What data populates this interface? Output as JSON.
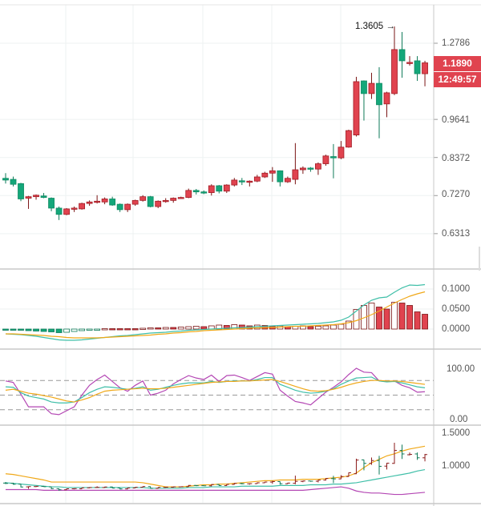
{
  "chart_data": {
    "type": "candlestick",
    "price_pane": {
      "scale": "log",
      "y_ticks": [
        "1.2786",
        "0.9641",
        "0.8372",
        "0.7270",
        "0.6313"
      ],
      "last_price_label": "1.1890",
      "countdown_label": "12:49:57",
      "high_annotation": "1.3605",
      "colors": {
        "rising": "#e0434f",
        "falling": "#14a77a"
      },
      "candles_ohlc": [
        [
          0.775,
          0.79,
          0.76,
          0.77
        ],
        [
          0.772,
          0.78,
          0.752,
          0.758
        ],
        [
          0.76,
          0.762,
          0.712,
          0.718
        ],
        [
          0.72,
          0.726,
          0.692,
          0.724
        ],
        [
          0.724,
          0.73,
          0.716,
          0.728
        ],
        [
          0.726,
          0.734,
          0.72,
          0.722
        ],
        [
          0.72,
          0.722,
          0.686,
          0.694
        ],
        [
          0.694,
          0.698,
          0.664,
          0.678
        ],
        [
          0.678,
          0.694,
          0.676,
          0.692
        ],
        [
          0.692,
          0.698,
          0.684,
          0.694
        ],
        [
          0.692,
          0.708,
          0.69,
          0.706
        ],
        [
          0.706,
          0.714,
          0.7,
          0.71
        ],
        [
          0.711,
          0.728,
          0.706,
          0.712
        ],
        [
          0.71,
          0.722,
          0.704,
          0.718
        ],
        [
          0.718,
          0.724,
          0.7,
          0.702
        ],
        [
          0.704,
          0.706,
          0.684,
          0.69
        ],
        [
          0.69,
          0.706,
          0.684,
          0.704
        ],
        [
          0.704,
          0.716,
          0.7,
          0.714
        ],
        [
          0.714,
          0.728,
          0.711,
          0.724
        ],
        [
          0.724,
          0.726,
          0.696,
          0.698
        ],
        [
          0.698,
          0.714,
          0.694,
          0.712
        ],
        [
          0.712,
          0.72,
          0.708,
          0.714
        ],
        [
          0.714,
          0.722,
          0.708,
          0.72
        ],
        [
          0.72,
          0.724,
          0.718,
          0.722
        ],
        [
          0.722,
          0.746,
          0.72,
          0.741
        ],
        [
          0.741,
          0.745,
          0.73,
          0.737
        ],
        [
          0.737,
          0.741,
          0.731,
          0.735
        ],
        [
          0.735,
          0.758,
          0.727,
          0.754
        ],
        [
          0.754,
          0.756,
          0.733,
          0.739
        ],
        [
          0.739,
          0.758,
          0.734,
          0.756
        ],
        [
          0.756,
          0.776,
          0.752,
          0.77
        ],
        [
          0.768,
          0.776,
          0.756,
          0.766
        ],
        [
          0.765,
          0.769,
          0.752,
          0.767
        ],
        [
          0.767,
          0.785,
          0.764,
          0.779
        ],
        [
          0.779,
          0.794,
          0.776,
          0.79
        ],
        [
          0.79,
          0.808,
          0.765,
          0.797
        ],
        [
          0.797,
          0.798,
          0.752,
          0.765
        ],
        [
          0.765,
          0.78,
          0.762,
          0.775
        ],
        [
          0.772,
          0.883,
          0.758,
          0.8
        ],
        [
          0.8,
          0.81,
          0.788,
          0.805
        ],
        [
          0.805,
          0.808,
          0.794,
          0.802
        ],
        [
          0.802,
          0.822,
          0.785,
          0.818
        ],
        [
          0.818,
          0.846,
          0.812,
          0.842
        ],
        [
          0.84,
          0.88,
          0.775,
          0.836
        ],
        [
          0.836,
          0.89,
          0.832,
          0.87
        ],
        [
          0.87,
          0.928,
          0.868,
          0.925
        ],
        [
          0.91,
          1.129,
          0.905,
          1.109
        ],
        [
          1.112,
          1.114,
          0.96,
          1.061
        ],
        [
          1.061,
          1.146,
          1.04,
          1.102
        ],
        [
          1.102,
          1.17,
          0.899,
          1.018
        ],
        [
          1.021,
          1.068,
          0.972,
          1.064
        ],
        [
          1.061,
          1.3605,
          1.055,
          1.249
        ],
        [
          1.249,
          1.333,
          1.125,
          1.198
        ],
        [
          1.186,
          1.219,
          1.177,
          1.191
        ],
        [
          1.198,
          1.219,
          1.112,
          1.142
        ],
        [
          1.142,
          1.198,
          1.09,
          1.189
        ]
      ]
    },
    "macd_pane": {
      "y_ticks": [
        "0.1000",
        "0.0500",
        "0.0000"
      ],
      "ylim": [
        -0.03,
        0.12
      ],
      "colors": {
        "dif": "#3fbfa8",
        "dea": "#f0a818",
        "hist_pos": "#e0434f",
        "hist_neg": "#14a77a"
      },
      "dif": [
        -0.012,
        -0.013,
        -0.014,
        -0.016,
        -0.018,
        -0.021,
        -0.024,
        -0.027,
        -0.028,
        -0.028,
        -0.027,
        -0.025,
        -0.023,
        -0.021,
        -0.019,
        -0.017,
        -0.016,
        -0.014,
        -0.012,
        -0.01,
        -0.009,
        -0.008,
        -0.006,
        -0.005,
        -0.003,
        -0.002,
        -0.001,
        0.0,
        0.001,
        0.002,
        0.003,
        0.004,
        0.005,
        0.006,
        0.007,
        0.008,
        0.009,
        0.01,
        0.011,
        0.012,
        0.013,
        0.014,
        0.016,
        0.018,
        0.022,
        0.03,
        0.045,
        0.06,
        0.072,
        0.078,
        0.08,
        0.092,
        0.103,
        0.11,
        0.109,
        0.111
      ],
      "dea": [
        -0.012,
        -0.012,
        -0.013,
        -0.014,
        -0.015,
        -0.016,
        -0.018,
        -0.019,
        -0.021,
        -0.022,
        -0.022,
        -0.022,
        -0.022,
        -0.021,
        -0.02,
        -0.019,
        -0.018,
        -0.017,
        -0.016,
        -0.015,
        -0.013,
        -0.012,
        -0.01,
        -0.009,
        -0.007,
        -0.006,
        -0.004,
        -0.003,
        -0.002,
        -0.001,
        0.0,
        0.001,
        0.002,
        0.003,
        0.003,
        0.004,
        0.005,
        0.006,
        0.007,
        0.007,
        0.008,
        0.009,
        0.01,
        0.011,
        0.013,
        0.016,
        0.021,
        0.028,
        0.036,
        0.045,
        0.055,
        0.065,
        0.074,
        0.082,
        0.088,
        0.093
      ],
      "histogram": [
        -0.001,
        -0.002,
        -0.003,
        -0.004,
        -0.005,
        -0.006,
        -0.007,
        -0.009,
        -0.008,
        -0.006,
        -0.004,
        -0.003,
        -0.001,
        0.001,
        0.001,
        0.001,
        0.001,
        0.001,
        0.002,
        0.003,
        0.003,
        0.004,
        0.004,
        0.005,
        0.006,
        0.007,
        0.006,
        0.008,
        0.01,
        0.009,
        0.011,
        0.01,
        0.008,
        0.01,
        0.009,
        0.007,
        0.008,
        0.006,
        0.007,
        0.008,
        0.006,
        0.007,
        0.008,
        0.01,
        0.012,
        0.02,
        0.049,
        0.059,
        0.065,
        0.055,
        0.05,
        0.067,
        0.065,
        0.059,
        0.043,
        0.037
      ]
    },
    "kdj_pane": {
      "y_ticks": [
        "100.00",
        "0.00"
      ],
      "ylim": [
        0,
        100
      ],
      "reference_levels": [
        80,
        50,
        20
      ],
      "colors": {
        "k": "#3fbfa8",
        "d": "#f0a818",
        "j": "#b447b4"
      },
      "k": [
        67,
        66,
        55,
        48,
        45,
        42,
        36,
        34,
        34,
        36,
        45,
        55,
        62,
        67,
        66,
        64,
        62,
        64,
        67,
        60,
        62,
        66,
        70,
        73,
        75,
        75,
        75,
        78,
        76,
        78,
        79,
        79,
        79,
        82,
        86,
        86,
        72,
        66,
        60,
        56,
        54,
        55,
        58,
        63,
        72,
        79,
        85,
        86,
        87,
        79,
        77,
        78,
        75,
        71,
        67,
        65
      ],
      "d": [
        60,
        62,
        58,
        54,
        52,
        49,
        46,
        42,
        38,
        36,
        40,
        45,
        52,
        58,
        60,
        61,
        62,
        63,
        64,
        63,
        63,
        64,
        66,
        68,
        70,
        72,
        74,
        76,
        77,
        78,
        78,
        79,
        79,
        80,
        81,
        82,
        78,
        73,
        68,
        63,
        59,
        58,
        59,
        62,
        66,
        71,
        75,
        78,
        80,
        80,
        79,
        79,
        78,
        76,
        74,
        72
      ],
      "j": [
        79,
        76,
        52,
        26,
        26,
        26,
        12,
        10,
        18,
        26,
        50,
        70,
        82,
        91,
        78,
        65,
        58,
        70,
        79,
        50,
        54,
        60,
        73,
        82,
        90,
        85,
        82,
        91,
        78,
        90,
        91,
        86,
        80,
        88,
        96,
        93,
        60,
        48,
        37,
        34,
        30,
        43,
        56,
        66,
        77,
        92,
        105,
        97,
        96,
        79,
        78,
        79,
        70,
        65,
        56,
        57
      ]
    },
    "boll_pane": {
      "y_ticks": [
        "1.5000",
        "1.0000"
      ],
      "colors": {
        "upper": "#f0a818",
        "mid": "#3fbfa8",
        "lower": "#b447b4"
      },
      "upper": [
        0.91,
        0.9,
        0.88,
        0.86,
        0.84,
        0.82,
        0.79,
        0.79,
        0.79,
        0.79,
        0.79,
        0.79,
        0.79,
        0.79,
        0.79,
        0.79,
        0.79,
        0.79,
        0.78,
        0.76,
        0.74,
        0.72,
        0.72,
        0.72,
        0.73,
        0.74,
        0.75,
        0.75,
        0.76,
        0.76,
        0.77,
        0.78,
        0.79,
        0.8,
        0.81,
        0.81,
        0.82,
        0.82,
        0.82,
        0.83,
        0.83,
        0.83,
        0.84,
        0.85,
        0.86,
        0.88,
        0.92,
        1.0,
        1.07,
        1.12,
        1.17,
        1.2,
        1.24,
        1.27,
        1.29,
        1.31
      ],
      "mid": [
        0.78,
        0.77,
        0.76,
        0.75,
        0.74,
        0.73,
        0.72,
        0.72,
        0.71,
        0.71,
        0.71,
        0.71,
        0.71,
        0.71,
        0.71,
        0.71,
        0.71,
        0.71,
        0.71,
        0.7,
        0.7,
        0.7,
        0.7,
        0.7,
        0.71,
        0.71,
        0.71,
        0.72,
        0.72,
        0.72,
        0.72,
        0.73,
        0.73,
        0.73,
        0.73,
        0.73,
        0.74,
        0.74,
        0.74,
        0.74,
        0.75,
        0.75,
        0.75,
        0.76,
        0.76,
        0.77,
        0.78,
        0.8,
        0.82,
        0.84,
        0.86,
        0.88,
        0.9,
        0.92,
        0.95,
        0.97
      ],
      "lower": [
        0.68,
        0.68,
        0.68,
        0.68,
        0.68,
        0.67,
        0.67,
        0.67,
        0.67,
        0.67,
        0.67,
        0.67,
        0.67,
        0.67,
        0.67,
        0.67,
        0.67,
        0.67,
        0.67,
        0.67,
        0.67,
        0.67,
        0.67,
        0.67,
        0.67,
        0.67,
        0.67,
        0.67,
        0.67,
        0.67,
        0.67,
        0.67,
        0.67,
        0.67,
        0.67,
        0.67,
        0.67,
        0.67,
        0.67,
        0.67,
        0.68,
        0.69,
        0.7,
        0.71,
        0.72,
        0.7,
        0.66,
        0.64,
        0.63,
        0.63,
        0.62,
        0.61,
        0.61,
        0.62,
        0.63,
        0.64
      ]
    }
  }
}
